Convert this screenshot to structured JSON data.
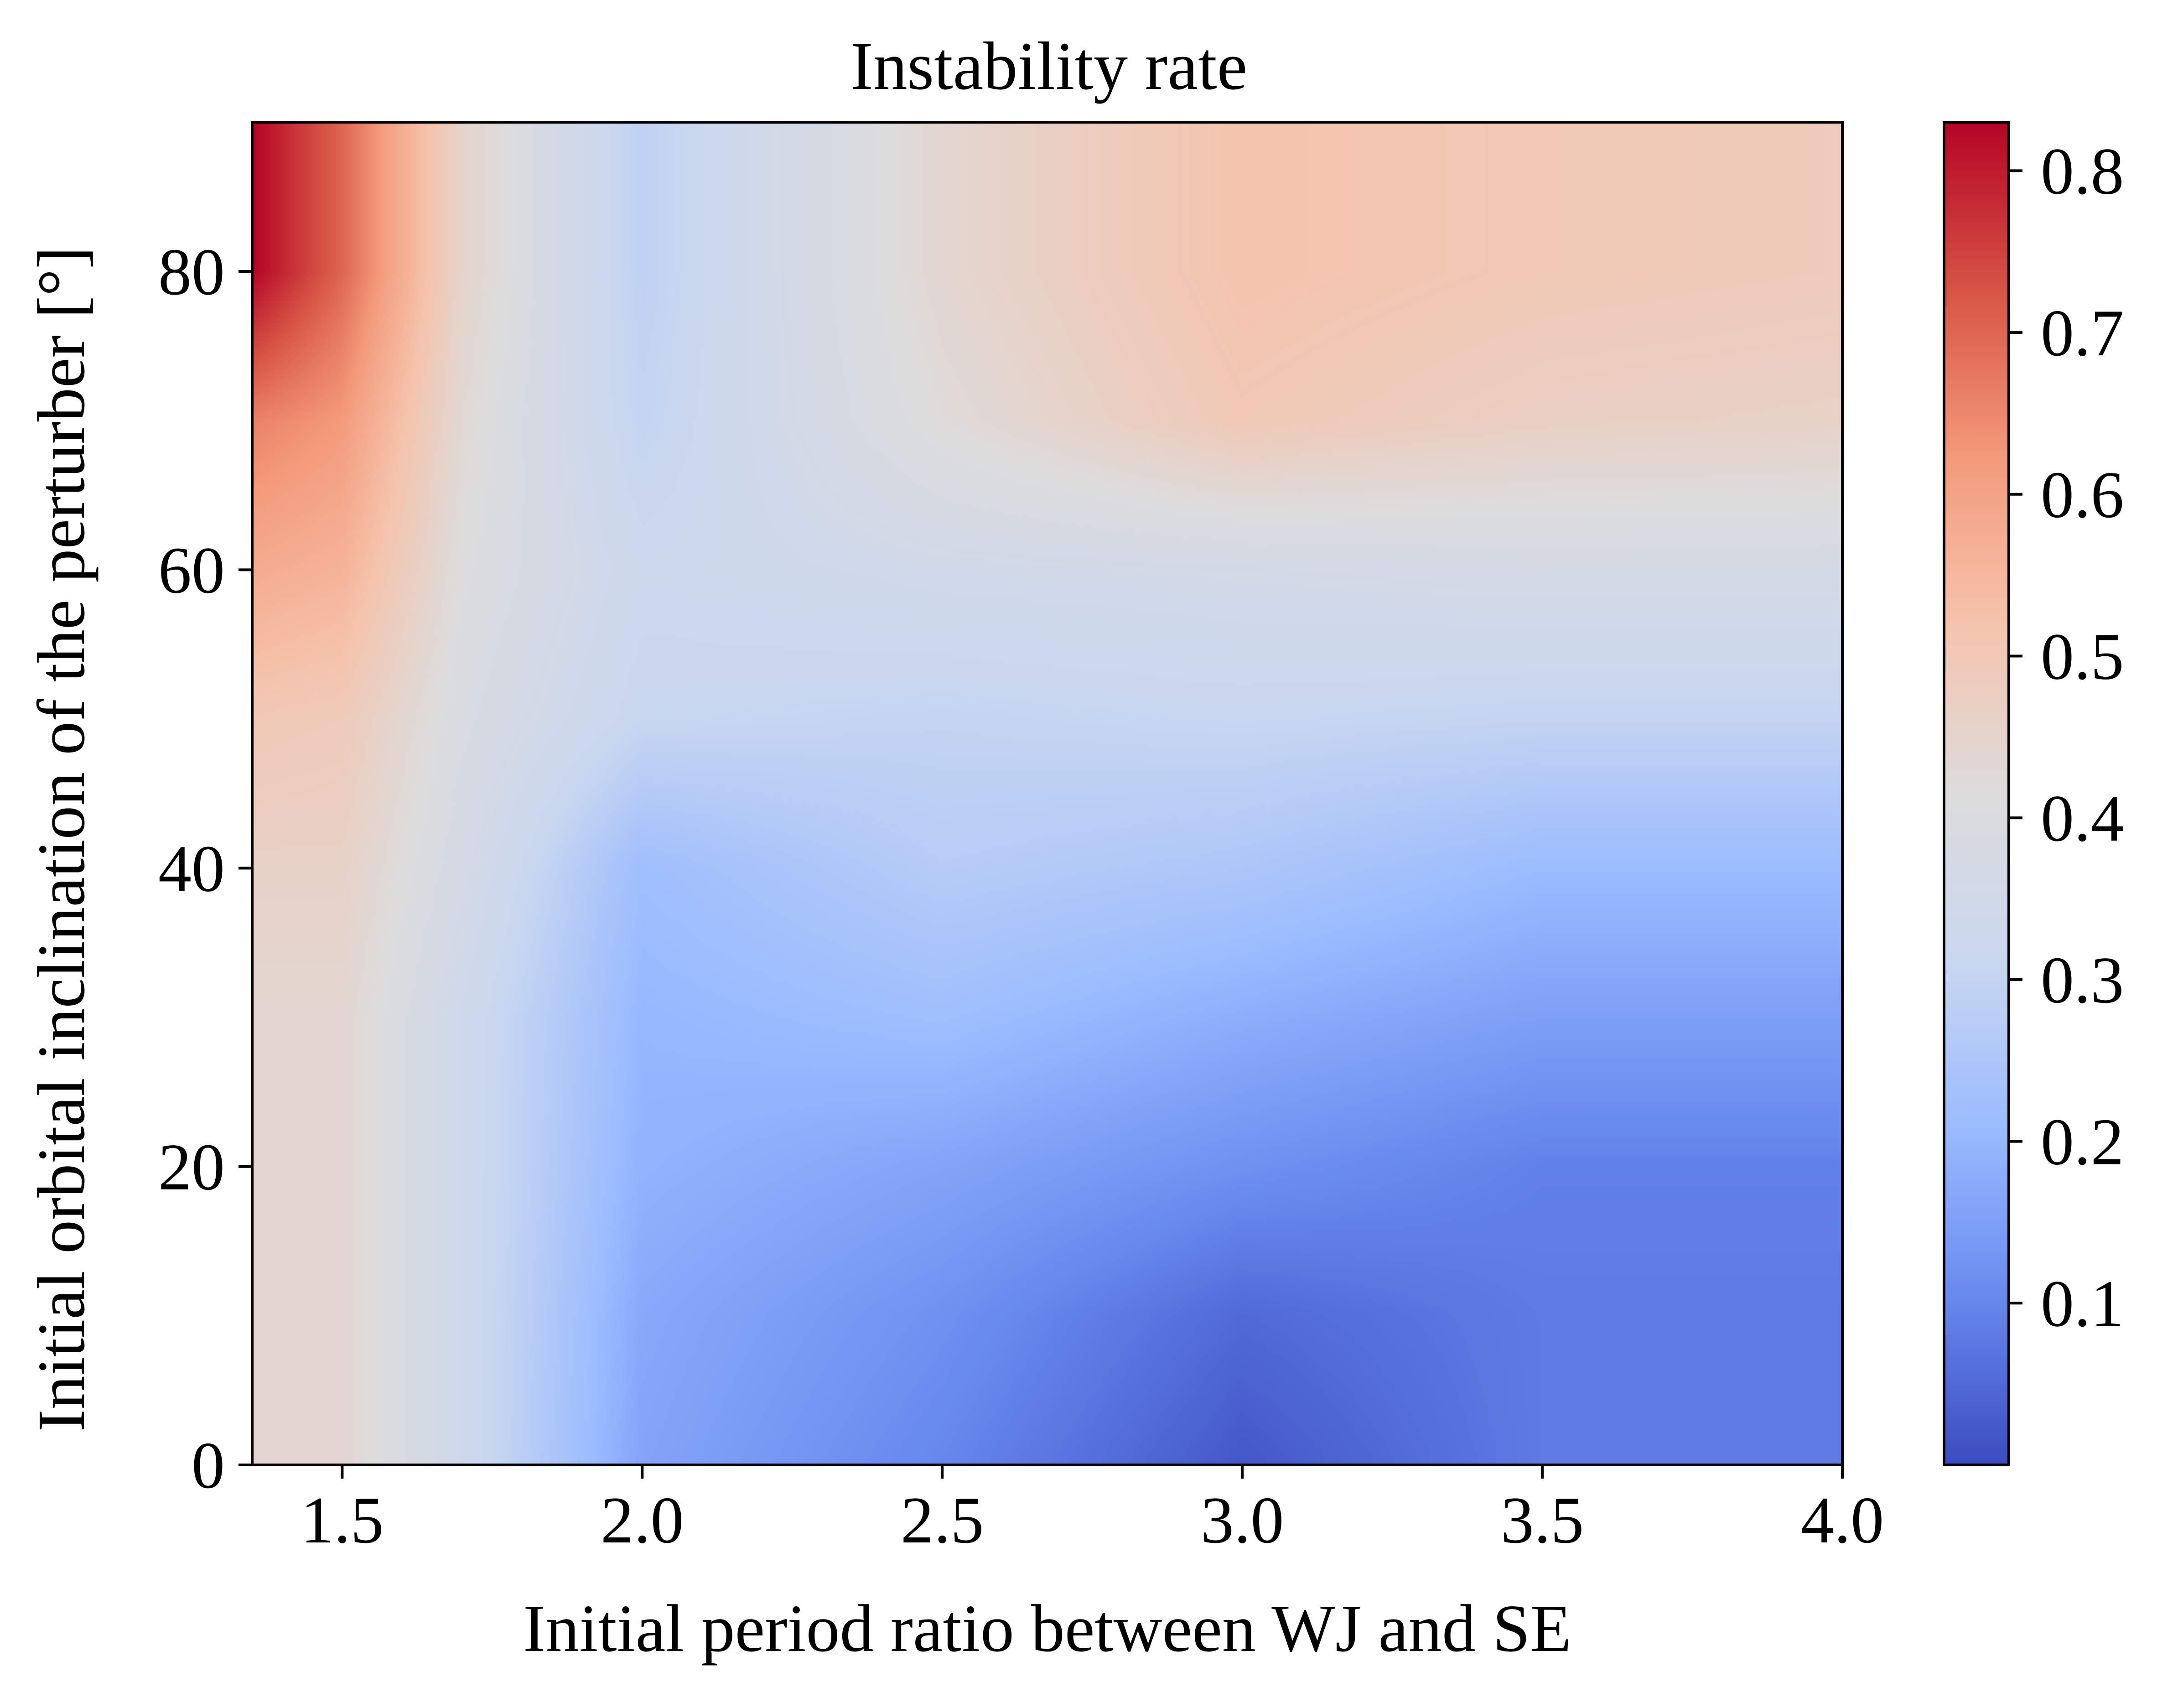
{
  "chart_data": {
    "type": "heatmap",
    "title": "Instability rate",
    "xlabel": "Initial period ratio between WJ and SE",
    "ylabel": "Initial orbital inclination of the perturber [°]",
    "xlim": [
      1.35,
      4.0
    ],
    "ylim": [
      0,
      90
    ],
    "x_ticks": [
      1.5,
      2.0,
      2.5,
      3.0,
      3.5,
      4.0
    ],
    "x_tick_labels": [
      "1.5",
      "2.0",
      "2.5",
      "3.0",
      "3.5",
      "4.0"
    ],
    "y_ticks": [
      0,
      20,
      40,
      60,
      80
    ],
    "y_tick_labels": [
      "0",
      "20",
      "40",
      "60",
      "80"
    ],
    "colormap": "coolwarm",
    "colormap_stops": [
      "#3b4cc0",
      "#6889ee",
      "#9abbff",
      "#c9d7f0",
      "#dddcdc",
      "#f5c4ad",
      "#f49a7b",
      "#d75445",
      "#b40426"
    ],
    "colorbar": {
      "range": [
        0.0,
        0.83
      ],
      "ticks": [
        0.1,
        0.2,
        0.3,
        0.4,
        0.5,
        0.6,
        0.7,
        0.8
      ],
      "tick_labels": [
        "0.1",
        "0.2",
        "0.3",
        "0.4",
        "0.5",
        "0.6",
        "0.7",
        "0.8"
      ]
    },
    "grid": false,
    "grid_x": [
      1.35,
      1.5,
      1.7,
      2.0,
      2.5,
      3.0,
      3.5,
      4.0
    ],
    "grid_y": [
      0,
      10,
      20,
      30,
      40,
      50,
      60,
      70,
      80,
      90
    ],
    "values": [
      [
        0.44,
        0.44,
        0.34,
        0.16,
        0.1,
        0.02,
        0.08,
        0.08
      ],
      [
        0.44,
        0.44,
        0.34,
        0.17,
        0.12,
        0.05,
        0.08,
        0.08
      ],
      [
        0.44,
        0.44,
        0.34,
        0.19,
        0.16,
        0.12,
        0.09,
        0.09
      ],
      [
        0.44,
        0.44,
        0.34,
        0.2,
        0.22,
        0.18,
        0.15,
        0.15
      ],
      [
        0.46,
        0.46,
        0.37,
        0.22,
        0.27,
        0.25,
        0.21,
        0.21
      ],
      [
        0.5,
        0.49,
        0.39,
        0.31,
        0.3,
        0.31,
        0.3,
        0.3
      ],
      [
        0.58,
        0.56,
        0.41,
        0.33,
        0.35,
        0.36,
        0.37,
        0.37
      ],
      [
        0.66,
        0.62,
        0.43,
        0.3,
        0.42,
        0.5,
        0.47,
        0.46
      ],
      [
        0.83,
        0.7,
        0.45,
        0.29,
        0.44,
        0.52,
        0.5,
        0.49
      ],
      [
        0.83,
        0.7,
        0.45,
        0.29,
        0.44,
        0.52,
        0.5,
        0.49
      ]
    ]
  }
}
